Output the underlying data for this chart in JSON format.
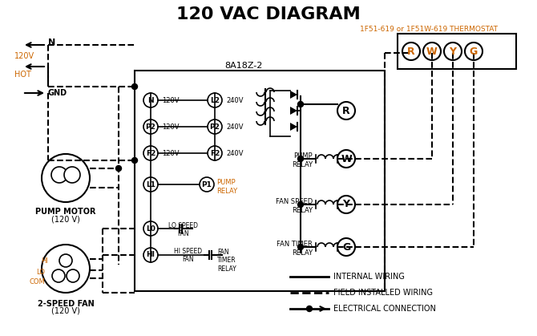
{
  "title": "120 VAC DIAGRAM",
  "title_color": "#000000",
  "title_fontsize": 16,
  "background_color": "#ffffff",
  "thermostat_label": "1F51-619 or 1F51W-619 THERMOSTAT",
  "thermostat_terminals": [
    "R",
    "W",
    "Y",
    "G"
  ],
  "thermostat_terminal_colors": [
    "#cc6600",
    "#cc6600",
    "#cc6600",
    "#cc6600"
  ],
  "control_box_label": "8A18Z-2",
  "left_terminals_top": [
    "N",
    "P2",
    "F2"
  ],
  "left_terminal_voltages": [
    "120V",
    "120V",
    "120V"
  ],
  "right_terminals_top": [
    "L2",
    "P2",
    "F2"
  ],
  "right_terminal_voltages": [
    "240V",
    "240V",
    "240V"
  ],
  "legend_items": [
    {
      "label": "INTERNAL WIRING",
      "linestyle": "-",
      "linewidth": 2
    },
    {
      "label": "FIELD INSTALLED WIRING",
      "linestyle": "--",
      "linewidth": 2
    },
    {
      "label": "ELECTRICAL CONNECTION",
      "linestyle": "-",
      "linewidth": 2,
      "marker": true
    }
  ],
  "pump_motor_label": "PUMP MOTOR",
  "pump_motor_voltage": "(120 V)",
  "fan_label": "2-SPEED FAN",
  "fan_voltage": "(120 V)",
  "fan_terminals": [
    "COM",
    "LO",
    "HI"
  ],
  "input_labels": [
    "N",
    "120V",
    "HOT",
    "GND"
  ],
  "orange": "#cc6600"
}
